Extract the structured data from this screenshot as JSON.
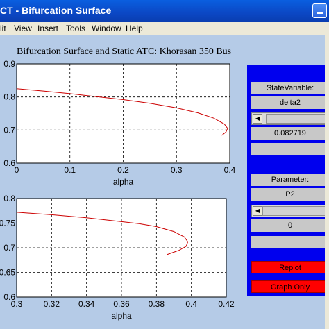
{
  "window": {
    "title": "CT - Bifurcation Surface"
  },
  "menu": [
    "lit",
    "View",
    "Insert",
    "Tools",
    "Window",
    "Help"
  ],
  "figure_title": "Bifurcation Surface and Static ATC: Khorasan 350 Bus",
  "chart_data": [
    {
      "type": "line",
      "xlabel": "alpha",
      "ylabel": "",
      "xlim": [
        0,
        0.4
      ],
      "ylim": [
        0.6,
        0.9
      ],
      "xticks": [
        "0",
        "0.1",
        "0.2",
        "0.3",
        "0.4"
      ],
      "yticks": [
        "0.6",
        "0.7",
        "0.8",
        "0.9"
      ],
      "grid": true,
      "series": [
        {
          "color": "#cc0000",
          "points": [
            [
              0,
              0.825
            ],
            [
              0.05,
              0.818
            ],
            [
              0.1,
              0.81
            ],
            [
              0.15,
              0.801
            ],
            [
              0.2,
              0.792
            ],
            [
              0.25,
              0.781
            ],
            [
              0.3,
              0.767
            ],
            [
              0.34,
              0.752
            ],
            [
              0.37,
              0.736
            ],
            [
              0.39,
              0.718
            ],
            [
              0.396,
              0.705
            ],
            [
              0.393,
              0.694
            ],
            [
              0.385,
              0.684
            ]
          ]
        }
      ]
    },
    {
      "type": "line",
      "xlabel": "alpha",
      "ylabel": "",
      "xlim": [
        0.3,
        0.42
      ],
      "ylim": [
        0.6,
        0.8
      ],
      "xticks": [
        "0.3",
        "0.32",
        "0.34",
        "0.36",
        "0.38",
        "0.4",
        "0.42"
      ],
      "yticks": [
        "0.6",
        "0.65",
        "0.7",
        "0.75",
        "0.8"
      ],
      "grid": true,
      "series": [
        {
          "color": "#cc0000",
          "points": [
            [
              0.3,
              0.772
            ],
            [
              0.32,
              0.767
            ],
            [
              0.34,
              0.761
            ],
            [
              0.36,
              0.753
            ],
            [
              0.37,
              0.749
            ],
            [
              0.38,
              0.743
            ],
            [
              0.39,
              0.733
            ],
            [
              0.396,
              0.722
            ],
            [
              0.398,
              0.712
            ],
            [
              0.397,
              0.703
            ],
            [
              0.393,
              0.695
            ],
            [
              0.386,
              0.686
            ]
          ]
        }
      ]
    }
  ],
  "controls": {
    "state_label": "StateVariable:",
    "state_value": "delta2",
    "state_slider_value": "0.082719",
    "param_label": "Parameter:",
    "param_value": "P2",
    "param_slider_value": "0",
    "replot_label": "Replot",
    "graph_only_label": "Graph Only"
  },
  "colors": {
    "panel": "#0000ee",
    "button": "#ff0000",
    "curve": "#cc0000"
  }
}
